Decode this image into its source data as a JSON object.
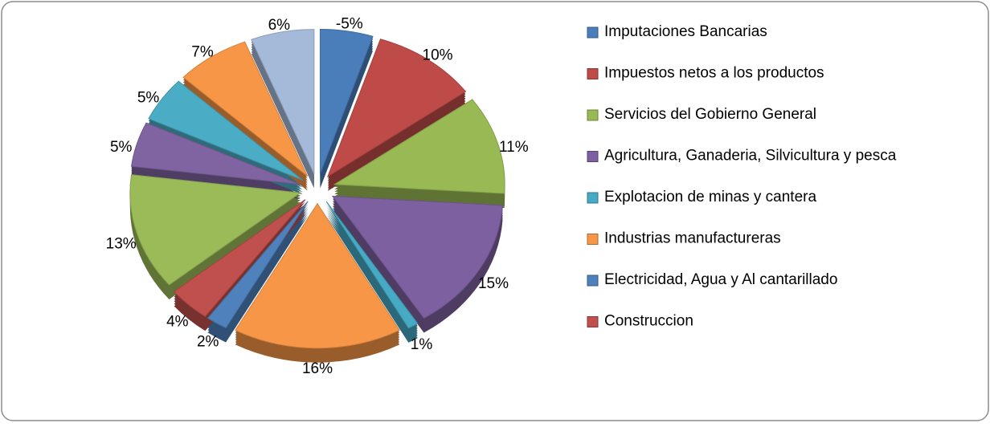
{
  "chart_data": {
    "type": "pie",
    "categories": [
      "Imputaciones Bancarias",
      "Impuestos netos a los productos",
      "Servicios del Gobierno General",
      "Agricultura, Ganaderia, Silvicultura y pesca",
      "Explotacion de minas y cantera",
      "Industrias manufactureras",
      "Electricidad, Agua y Al cantarillado",
      "Construccion",
      null,
      null,
      null,
      null,
      null
    ],
    "values": [
      -5,
      10,
      11,
      15,
      1,
      16,
      2,
      4,
      13,
      5,
      5,
      7,
      6
    ],
    "value_labels": [
      "-5%",
      "10%",
      "11%",
      "15%",
      "1%",
      "16%",
      "2%",
      "4%",
      "13%",
      "5%",
      "5%",
      "7%",
      "6%"
    ],
    "colors": [
      "#4a7ebb",
      "#be4b48",
      "#98b954",
      "#7d60a0",
      "#46aac5",
      "#f79646",
      "#4f81bd",
      "#c0504d",
      "#9bbb59",
      "#8064a2",
      "#4bacc6",
      "#f79646",
      "#a5b9d9"
    ],
    "legend": "right"
  }
}
